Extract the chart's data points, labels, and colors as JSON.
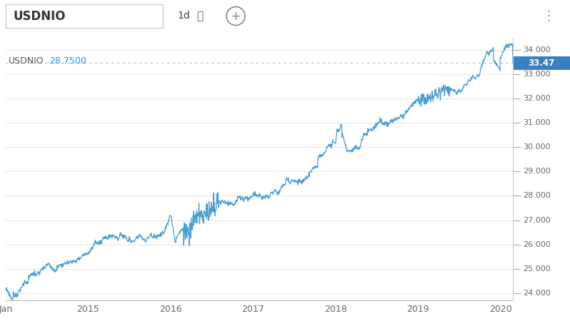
{
  "title": "USDNIO",
  "subtitle_label": "USDNIO",
  "subtitle_value": "28.7500",
  "subtitle_value_color": "#2196F3",
  "current_price": 33.47,
  "current_price_label": "33.47",
  "y_ticks": [
    24.0,
    25.0,
    26.0,
    27.0,
    28.0,
    29.0,
    30.0,
    31.0,
    32.0,
    33.0,
    34.0
  ],
  "y_min": 23.7,
  "y_max": 34.5,
  "x_labels": [
    "Jan",
    "2015",
    "2016",
    "2017",
    "2018",
    "2019",
    "2020"
  ],
  "line_color": "#4A9FD4",
  "bg_color": "#FFFFFF",
  "header_bg": "#F2F2F2",
  "grid_color": "#E8E8E8",
  "dotted_line_color": "#4A9FD4",
  "dotted_line_y": 33.47,
  "price_label_bg": "#3A7FC1",
  "axis_text_color": "#666666",
  "header_text_color": "#333333",
  "toolbar_label": "1d",
  "total_years": 6.15,
  "year_offsets": [
    0,
    1,
    2,
    3,
    4,
    5,
    6
  ]
}
